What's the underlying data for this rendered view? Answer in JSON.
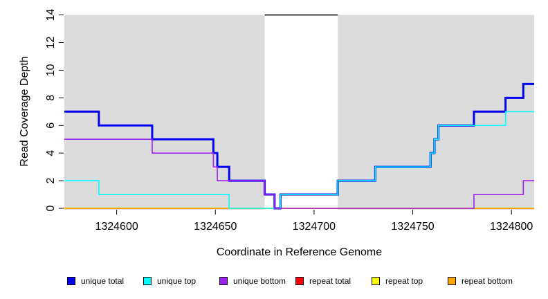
{
  "chart_data": {
    "type": "line",
    "subtype": "step-coverage",
    "title": "",
    "xlabel": "Coordinate in Reference Genome",
    "ylabel": "Read Coverage Depth",
    "xlim": [
      1324573.5,
      1324811.5
    ],
    "ylim": [
      0,
      14
    ],
    "x_ticks": [
      1324600,
      1324650,
      1324700,
      1324750,
      1324800
    ],
    "y_ticks": [
      0,
      2,
      4,
      6,
      8,
      10,
      12,
      14
    ],
    "grid": false,
    "panel_color": "#DCDCDC",
    "background_regions": [
      {
        "name": "unique-region-left",
        "x0": 1324573.5,
        "x1": 1324675,
        "color": "#DCDCDC"
      },
      {
        "name": "repeat-gap",
        "x0": 1324675,
        "x1": 1324712,
        "color": "#FFFFFF"
      },
      {
        "name": "unique-region-right",
        "x0": 1324712,
        "x1": 1324811.5,
        "color": "#DCDCDC"
      }
    ],
    "repeat_region_marker": {
      "x0": 1324675,
      "x1": 1324712,
      "y": 14,
      "color": "#000000"
    },
    "series": [
      {
        "name": "repeat total",
        "color": "#FF0000",
        "width": 2,
        "points": [
          [
            1324573.5,
            0
          ],
          [
            1324811.5,
            0
          ]
        ]
      },
      {
        "name": "repeat top",
        "color": "#FFFF00",
        "width": 2,
        "points": [
          [
            1324573.5,
            0
          ],
          [
            1324811.5,
            0
          ]
        ]
      },
      {
        "name": "repeat bottom",
        "color": "#FFA500",
        "width": 2,
        "points": [
          [
            1324573.5,
            0
          ],
          [
            1324811.5,
            0
          ]
        ]
      },
      {
        "name": "unique total",
        "color": "#0000EE",
        "width": 3,
        "points": [
          [
            1324573.5,
            7
          ],
          [
            1324591,
            6
          ],
          [
            1324618,
            5
          ],
          [
            1324649,
            4
          ],
          [
            1324651,
            3
          ],
          [
            1324657,
            2
          ],
          [
            1324675,
            1
          ],
          [
            1324680,
            0
          ],
          [
            1324683,
            1
          ],
          [
            1324712,
            2
          ],
          [
            1324731,
            3
          ],
          [
            1324759,
            4
          ],
          [
            1324761,
            5
          ],
          [
            1324763,
            6
          ],
          [
            1324781,
            7
          ],
          [
            1324797,
            8
          ],
          [
            1324806,
            9
          ],
          [
            1324811.5,
            9
          ]
        ]
      },
      {
        "name": "unique top",
        "color": "#00FFFF",
        "width": 1.6,
        "points": [
          [
            1324573.5,
            2
          ],
          [
            1324591,
            1
          ],
          [
            1324657,
            0
          ],
          [
            1324683,
            1
          ],
          [
            1324712,
            2
          ],
          [
            1324731,
            3
          ],
          [
            1324759,
            4
          ],
          [
            1324761,
            5
          ],
          [
            1324763,
            6
          ],
          [
            1324797,
            7
          ],
          [
            1324811.5,
            7
          ]
        ]
      },
      {
        "name": "unique bottom",
        "color": "#A020F0",
        "width": 1.6,
        "points": [
          [
            1324573.5,
            5
          ],
          [
            1324618,
            4
          ],
          [
            1324649,
            3
          ],
          [
            1324651,
            2
          ],
          [
            1324675,
            1
          ],
          [
            1324680,
            0
          ],
          [
            1324781,
            1
          ],
          [
            1324806,
            2
          ],
          [
            1324811.5,
            2
          ]
        ]
      }
    ],
    "legend": {
      "position": "bottom",
      "entries": [
        {
          "label": "unique total",
          "color": "#0000EE"
        },
        {
          "label": "unique top",
          "color": "#00FFFF"
        },
        {
          "label": "unique bottom",
          "color": "#A020F0"
        },
        {
          "label": "repeat total",
          "color": "#FF0000"
        },
        {
          "label": "repeat top",
          "color": "#FFFF00"
        },
        {
          "label": "repeat bottom",
          "color": "#FFA500"
        }
      ]
    }
  }
}
